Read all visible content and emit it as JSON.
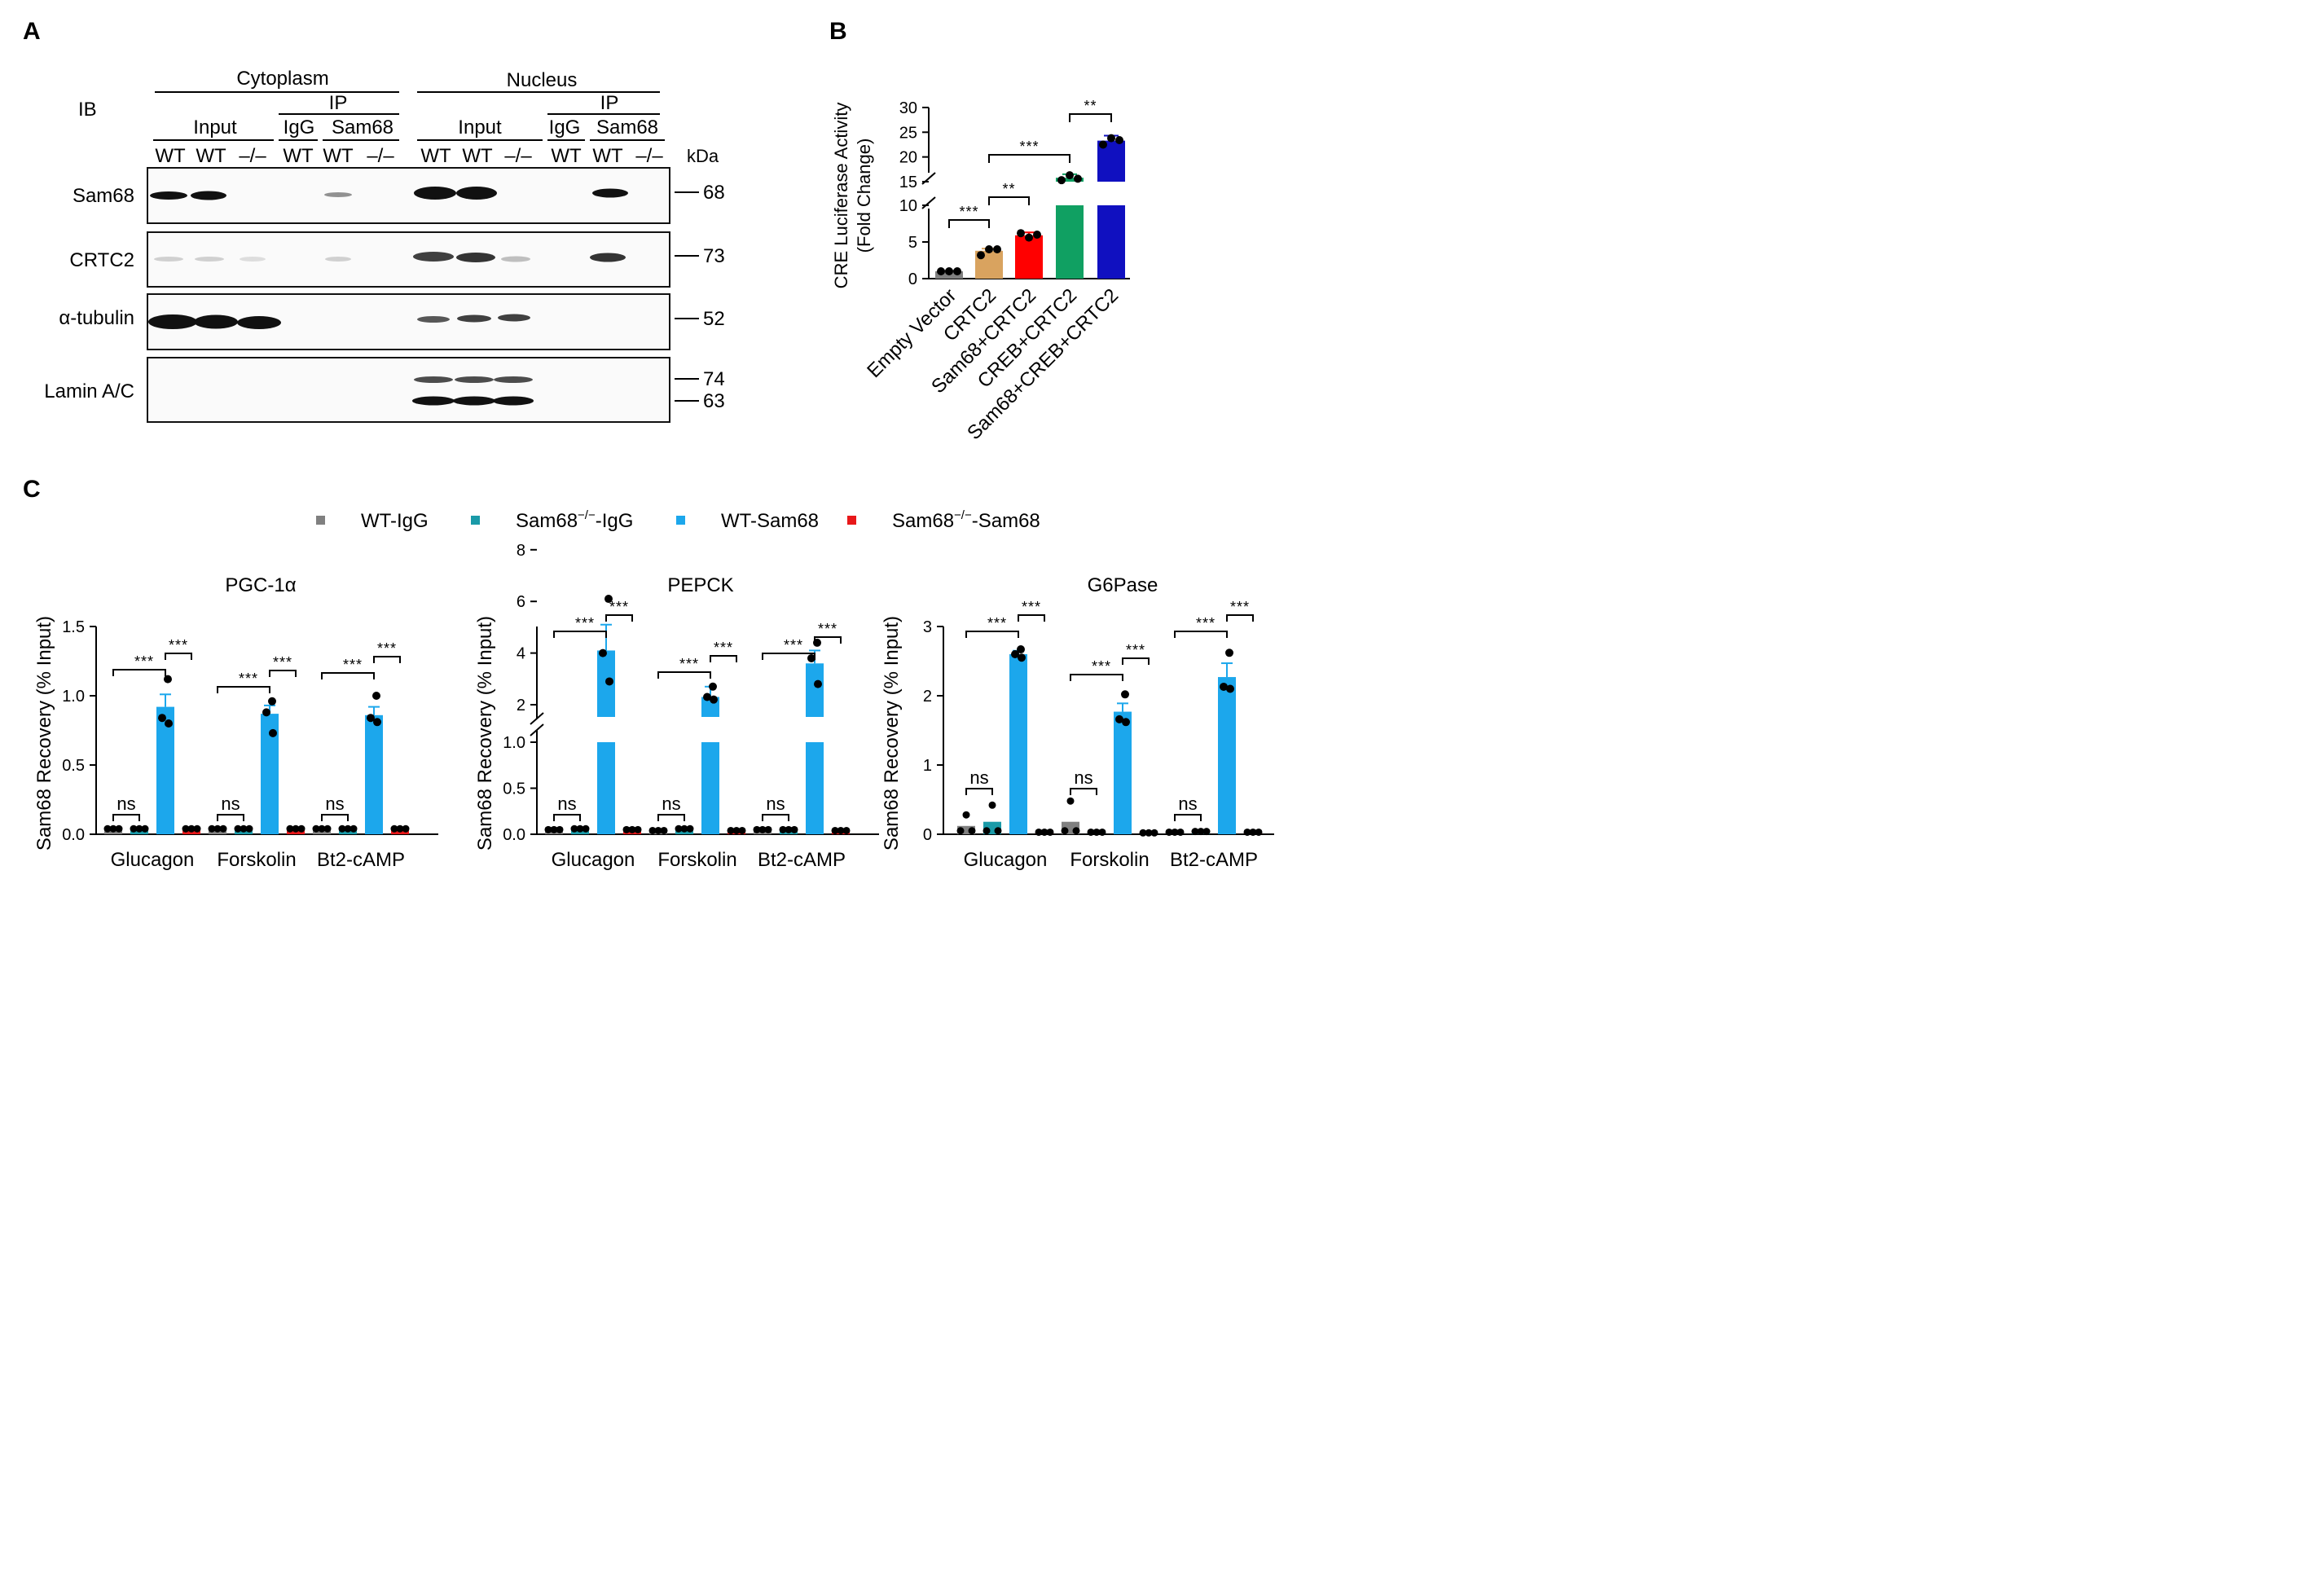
{
  "panels": {
    "A": "A",
    "B": "B",
    "C": "C"
  },
  "panelA": {
    "ib": "IB",
    "cytoplasm": "Cytoplasm",
    "nucleus": "Nucleus",
    "input": "Input",
    "ip": "IP",
    "igg": "IgG",
    "sam68": "Sam68",
    "kda": "kDa",
    "lanes": [
      "WT",
      "WT",
      "–/–",
      "WT",
      "WT",
      "–/–",
      "WT",
      "WT",
      "–/–",
      "WT",
      "WT",
      "–/–"
    ],
    "rows": [
      "Sam68",
      "CRTC2",
      "α-tubulin",
      "Lamin A/C"
    ],
    "markers": [
      "68",
      "73",
      "52",
      "74",
      "63"
    ]
  },
  "panelB": {
    "ylabel_line1": "CRE Luciferase Activity",
    "ylabel_line2": "(Fold Change)",
    "categories": [
      "Empty Vector",
      "CRTC2",
      "Sam68+CRTC2",
      "CREB+CRTC2",
      "Sam68+CREB+CRTC2"
    ],
    "ticks_low": [
      "0",
      "5",
      "10"
    ],
    "ticks_high": [
      "15",
      "20",
      "25",
      "30"
    ],
    "sig": [
      "***",
      "**",
      "***",
      "**"
    ]
  },
  "panelC": {
    "legend": [
      {
        "pre": "WT-IgG",
        "sup": "",
        "post": "",
        "color": "#808080"
      },
      {
        "pre": "Sam68",
        "sup": "−/−",
        "post": "-IgG",
        "color": "#1a9aa8"
      },
      {
        "pre": "WT-Sam68",
        "sup": "",
        "post": "",
        "color": "#1ca7ec"
      },
      {
        "pre": "Sam68",
        "sup": "−/−",
        "post": "-Sam68",
        "color": "#e8181a"
      }
    ],
    "ylabel": "Sam68 Recovery (% Input)",
    "x_categories": [
      "Glucagon",
      "Forskolin",
      "Bt2-cAMP"
    ],
    "ns": "ns",
    "stars": "***",
    "ticks_pgc": [
      "0.0",
      "0.5",
      "1.0",
      "1.5"
    ],
    "ticks_pepck_low": [
      "0.0",
      "0.5",
      "1.0"
    ],
    "ticks_pepck_high": [
      "2",
      "4",
      "6",
      "8"
    ],
    "ticks_g6": [
      "0",
      "1",
      "2",
      "3"
    ]
  },
  "chart_data": [
    {
      "type": "bar",
      "title": "",
      "ylabel": "CRE Luciferase Activity (Fold Change)",
      "categories": [
        "Empty Vector",
        "CRTC2",
        "Sam68+CRTC2",
        "CREB+CRTC2",
        "Sam68+CREB+CRTC2"
      ],
      "values": [
        1.0,
        3.8,
        5.9,
        15.8,
        23.3
      ],
      "errors": [
        0.1,
        0.3,
        0.4,
        0.7,
        1.0
      ],
      "points": [
        [
          1.0,
          1.0,
          1.0
        ],
        [
          3.2,
          4.0,
          4.0
        ],
        [
          6.2,
          5.6,
          6.0
        ],
        [
          15.3,
          16.3,
          15.6
        ],
        [
          22.5,
          23.8,
          23.4
        ]
      ],
      "colors": [
        "#808080",
        "#d9a35f",
        "#ff0000",
        "#10a062",
        "#1010c0"
      ],
      "y_break": [
        10,
        15
      ],
      "ylim": [
        0,
        30
      ],
      "significance": [
        {
          "pair": [
            "Empty Vector",
            "CRTC2"
          ],
          "label": "***"
        },
        {
          "pair": [
            "CRTC2",
            "Sam68+CRTC2"
          ],
          "label": "**"
        },
        {
          "pair": [
            "CRTC2",
            "CREB+CRTC2"
          ],
          "label": "***"
        },
        {
          "pair": [
            "CREB+CRTC2",
            "Sam68+CREB+CRTC2"
          ],
          "label": "**"
        }
      ]
    },
    {
      "type": "bar",
      "title": "PGC-1α",
      "ylabel": "Sam68 Recovery (% Input)",
      "categories": [
        "Glucagon",
        "Forskolin",
        "Bt2-cAMP"
      ],
      "ylim": [
        0,
        1.5
      ],
      "series": [
        {
          "name": "WT-IgG",
          "values": [
            0.04,
            0.04,
            0.04
          ]
        },
        {
          "name": "Sam68−/−-IgG",
          "values": [
            0.04,
            0.04,
            0.04
          ]
        },
        {
          "name": "WT-Sam68",
          "values": [
            0.92,
            0.87,
            0.86
          ]
        },
        {
          "name": "Sam68−/−-Sam68",
          "values": [
            0.04,
            0.04,
            0.04
          ]
        }
      ],
      "errors_wt_sam68": [
        0.09,
        0.06,
        0.06
      ],
      "points_wt_sam68": [
        [
          1.12,
          0.84,
          0.8
        ],
        [
          0.96,
          0.88,
          0.73
        ],
        [
          1.0,
          0.84,
          0.81
        ]
      ]
    },
    {
      "type": "bar",
      "title": "PEPCK",
      "ylabel": "Sam68 Recovery (% Input)",
      "categories": [
        "Glucagon",
        "Forskolin",
        "Bt2-cAMP"
      ],
      "y_break": [
        1.0,
        1.0
      ],
      "ylim": [
        0,
        8
      ],
      "series": [
        {
          "name": "WT-IgG",
          "values": [
            0.05,
            0.04,
            0.05
          ]
        },
        {
          "name": "Sam68−/−-IgG",
          "values": [
            0.06,
            0.06,
            0.05
          ]
        },
        {
          "name": "WT-Sam68",
          "values": [
            4.1,
            2.3,
            3.6
          ]
        },
        {
          "name": "Sam68−/−-Sam68",
          "values": [
            0.05,
            0.04,
            0.04
          ]
        }
      ],
      "errors_wt_sam68": [
        1.0,
        0.4,
        0.5
      ],
      "points_wt_sam68": [
        [
          6.1,
          4.0,
          2.9
        ],
        [
          2.7,
          2.3,
          2.2
        ],
        [
          4.4,
          3.8,
          2.8
        ]
      ]
    },
    {
      "type": "bar",
      "title": "G6Pase",
      "ylabel": "Sam68 Recovery (% Input)",
      "categories": [
        "Glucagon",
        "Forskolin",
        "Bt2-cAMP"
      ],
      "ylim": [
        0,
        3
      ],
      "series": [
        {
          "name": "WT-IgG",
          "values": [
            0.12,
            0.18,
            0.03
          ]
        },
        {
          "name": "Sam68−/−-IgG",
          "values": [
            0.18,
            0.03,
            0.04
          ]
        },
        {
          "name": "WT-Sam68",
          "values": [
            2.6,
            1.77,
            2.27
          ]
        },
        {
          "name": "Sam68−/−-Sam68",
          "values": [
            0.03,
            0.02,
            0.03
          ]
        }
      ],
      "errors_wt_sam68": [
        0.05,
        0.12,
        0.2
      ],
      "points_wt_sam68": [
        [
          2.67,
          2.6,
          2.55
        ],
        [
          2.02,
          1.66,
          1.62
        ],
        [
          2.62,
          2.13,
          2.1
        ]
      ]
    }
  ]
}
